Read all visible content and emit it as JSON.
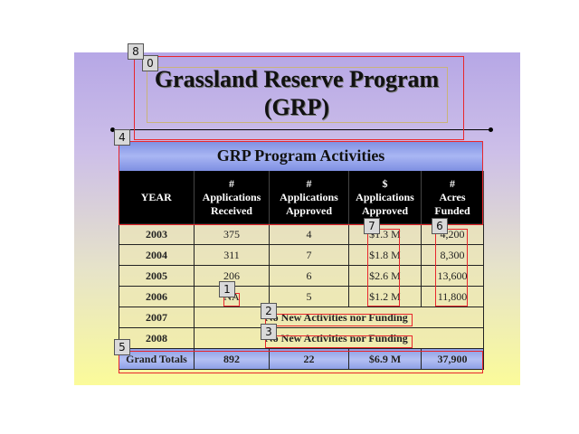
{
  "slide": {
    "title_line1": "Grassland Reserve Program",
    "title_line2": "(GRP)",
    "table_title": "GRP Program Activities",
    "headers": [
      {
        "line1": "YEAR",
        "line2": "",
        "line3": ""
      },
      {
        "line1": "#",
        "line2": "Applications",
        "line3": "Received"
      },
      {
        "line1": "#",
        "line2": "Applications",
        "line3": "Approved"
      },
      {
        "line1": "$",
        "line2": "Applications",
        "line3": "Approved"
      },
      {
        "line1": "#",
        "line2": "Acres",
        "line3": "Funded"
      }
    ],
    "rows": [
      {
        "year": "2003",
        "received": "375",
        "approved": "4",
        "dollars": "$1.3 M",
        "acres": "4,200"
      },
      {
        "year": "2004",
        "received": "311",
        "approved": "7",
        "dollars": "$1.8 M",
        "acres": "8,300"
      },
      {
        "year": "2005",
        "received": "206",
        "approved": "6",
        "dollars": "$2.6 M",
        "acres": "13,600"
      },
      {
        "year": "2006",
        "received": "NA",
        "approved": "5",
        "dollars": "$1.2 M",
        "acres": "11,800"
      }
    ],
    "span_rows": [
      {
        "year": "2007",
        "note": "No New Activities nor Funding"
      },
      {
        "year": "2008",
        "note": "No New Activities nor Funding"
      }
    ],
    "totals": {
      "label": "Grand Totals",
      "received": "892",
      "approved": "22",
      "dollars": "$6.9 M",
      "acres": "37,900"
    }
  },
  "tags": [
    "0",
    "1",
    "2",
    "3",
    "4",
    "5",
    "6",
    "7",
    "8"
  ]
}
